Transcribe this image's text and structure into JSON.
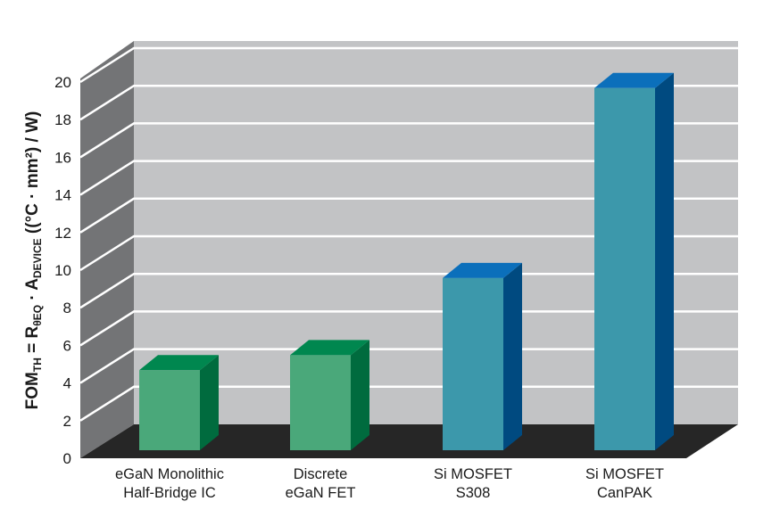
{
  "chart_data": {
    "type": "bar",
    "categories": [
      [
        "eGaN Monolithic",
        "Half-Bridge IC"
      ],
      [
        "Discrete",
        "eGaN FET"
      ],
      [
        "Si MOSFET",
        "S308"
      ],
      [
        "Si MOSFET",
        "CanPAK"
      ]
    ],
    "values": [
      4.3,
      5.1,
      9.2,
      19.3
    ],
    "bar_colors": [
      {
        "front": "#4aa87a",
        "side": "#006b3e",
        "top": "#00874f"
      },
      {
        "front": "#4aa87a",
        "side": "#006b3e",
        "top": "#00874f"
      },
      {
        "front": "#3c98ab",
        "side": "#004a80",
        "top": "#0b6fbb"
      },
      {
        "front": "#3c98ab",
        "side": "#004a80",
        "top": "#0b6fbb"
      }
    ],
    "ylim": [
      0,
      20
    ],
    "yticks": [
      0,
      2,
      4,
      6,
      8,
      10,
      12,
      14,
      16,
      18,
      20
    ],
    "ylabel": {
      "parts": [
        {
          "text": "FOM",
          "sub": false
        },
        {
          "text": "TH",
          "sub": true
        },
        {
          "text": " = R",
          "sub": false
        },
        {
          "text": "θEQ",
          "sub": true
        },
        {
          "text": " · A",
          "sub": false
        },
        {
          "text": "DEVICE",
          "sub": true
        },
        {
          "text": " ((°C · mm²) / W)",
          "sub": false
        }
      ]
    },
    "grid": true,
    "style": "3d",
    "colors": {
      "back_wall": "#c2c3c5",
      "side_wall": "#737476",
      "floor": "#262626",
      "grid": "#ffffff"
    }
  }
}
